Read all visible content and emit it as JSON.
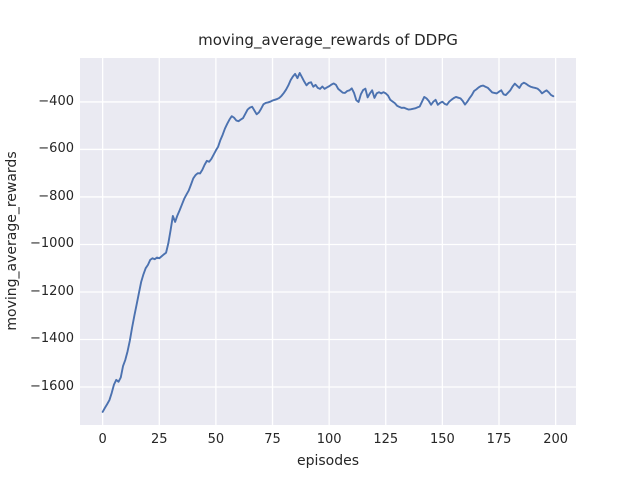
{
  "figure": {
    "title": "moving_average_rewards of DDPG",
    "xlabel": "episodes",
    "ylabel": "moving_average_rewards",
    "colors": {
      "figure_bg": "#ffffff",
      "axes_bg": "#eaeaf2",
      "grid": "#ffffff",
      "line": "#4c72b0",
      "text": "#262626"
    }
  },
  "chart_data": {
    "type": "line",
    "title": "moving_average_rewards of DDPG",
    "xlabel": "episodes",
    "ylabel": "moving_average_rewards",
    "x_ticks": [
      0,
      25,
      50,
      75,
      100,
      125,
      150,
      175,
      200
    ],
    "y_ticks": [
      -400,
      -600,
      -800,
      -1000,
      -1200,
      -1400,
      -1600
    ],
    "xlim": [
      -10,
      209
    ],
    "ylim": [
      -1760,
      -215
    ],
    "grid": true,
    "legend": null,
    "series": [
      {
        "name": "moving_average_rewards",
        "color": "#4c72b0",
        "x0": 0,
        "dx": 1,
        "values": [
          -1705,
          -1688,
          -1672,
          -1655,
          -1625,
          -1590,
          -1570,
          -1578,
          -1560,
          -1512,
          -1486,
          -1450,
          -1405,
          -1350,
          -1300,
          -1253,
          -1205,
          -1158,
          -1126,
          -1100,
          -1086,
          -1065,
          -1058,
          -1062,
          -1055,
          -1058,
          -1050,
          -1042,
          -1035,
          -995,
          -940,
          -880,
          -905,
          -878,
          -856,
          -832,
          -808,
          -790,
          -773,
          -748,
          -722,
          -708,
          -700,
          -701,
          -686,
          -665,
          -648,
          -652,
          -640,
          -622,
          -604,
          -588,
          -560,
          -538,
          -512,
          -492,
          -474,
          -460,
          -466,
          -478,
          -481,
          -474,
          -468,
          -450,
          -432,
          -424,
          -420,
          -436,
          -452,
          -444,
          -428,
          -410,
          -404,
          -402,
          -399,
          -394,
          -391,
          -388,
          -383,
          -374,
          -362,
          -348,
          -330,
          -308,
          -293,
          -282,
          -300,
          -278,
          -296,
          -314,
          -330,
          -320,
          -317,
          -336,
          -328,
          -341,
          -345,
          -335,
          -345,
          -339,
          -334,
          -327,
          -322,
          -328,
          -345,
          -353,
          -361,
          -362,
          -354,
          -351,
          -343,
          -362,
          -393,
          -400,
          -368,
          -350,
          -344,
          -381,
          -364,
          -351,
          -383,
          -364,
          -359,
          -364,
          -359,
          -364,
          -373,
          -391,
          -398,
          -405,
          -416,
          -421,
          -425,
          -424,
          -428,
          -432,
          -431,
          -429,
          -427,
          -423,
          -419,
          -399,
          -379,
          -385,
          -396,
          -412,
          -399,
          -391,
          -412,
          -404,
          -399,
          -408,
          -412,
          -399,
          -391,
          -384,
          -379,
          -382,
          -385,
          -396,
          -411,
          -399,
          -384,
          -371,
          -354,
          -347,
          -339,
          -333,
          -331,
          -336,
          -340,
          -350,
          -360,
          -362,
          -364,
          -357,
          -351,
          -368,
          -371,
          -361,
          -351,
          -335,
          -323,
          -332,
          -341,
          -325,
          -319,
          -324,
          -331,
          -336,
          -339,
          -341,
          -344,
          -352,
          -364,
          -357,
          -351,
          -360,
          -371,
          -376
        ]
      }
    ]
  }
}
